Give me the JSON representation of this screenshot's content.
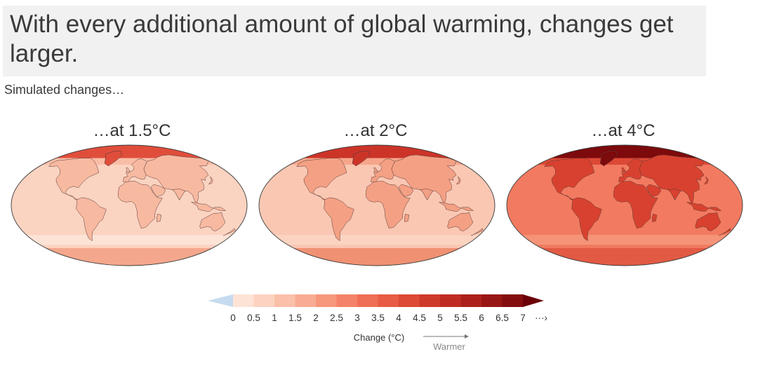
{
  "header": {
    "title": "With every additional amount of global warming, changes get larger.",
    "subtitle": "Simulated changes…"
  },
  "maps": [
    {
      "label": "…at 1.5°C",
      "warming": 1.5
    },
    {
      "label": "…at 2°C",
      "warming": 2
    },
    {
      "label": "…at 4°C",
      "warming": 4
    }
  ],
  "legend": {
    "ticks": [
      "0",
      "0.5",
      "1",
      "1.5",
      "2",
      "2.5",
      "3",
      "3.5",
      "4",
      "4.5",
      "5",
      "5.5",
      "6",
      "6.5",
      "7"
    ],
    "overflow_arrow": "···›",
    "label": "Change (°C)",
    "direction_label": "Warmer",
    "colors": [
      "#fde3d6",
      "#fcd2c0",
      "#fbc0a9",
      "#f9ac93",
      "#f7977c",
      "#f48268",
      "#ef6e55",
      "#e85c45",
      "#dd4a36",
      "#d03a2b",
      "#c02c22",
      "#ad201b",
      "#981614",
      "#830d0f"
    ],
    "low_color": "#c6dbef",
    "high_color": "#6b0009"
  },
  "map_palettes": [
    {
      "ocean": "#fbd3c1",
      "land": "#f8b9a1",
      "arctic": "#e04e3b",
      "antarctic": "#f4a78c",
      "band": "#fde3d6"
    },
    {
      "ocean": "#fac7b3",
      "land": "#f4a084",
      "arctic": "#cc3428",
      "antarctic": "#ef9172",
      "band": "#fbd3c1"
    },
    {
      "ocean": "#f27a60",
      "land": "#d8412f",
      "arctic": "#7d0a0c",
      "antarctic": "#e25a44",
      "band": "#f59378"
    }
  ]
}
